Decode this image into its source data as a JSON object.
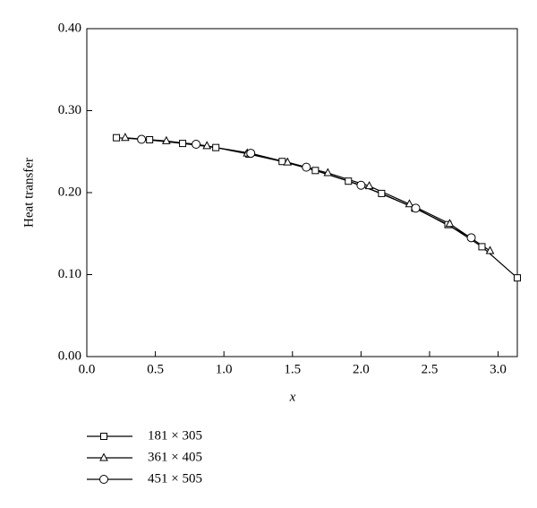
{
  "chart_data": {
    "type": "line",
    "x_label": "x",
    "y_label": "Heat transfer",
    "xlim": [
      0,
      3.14
    ],
    "ylim": [
      0,
      0.4
    ],
    "xticks": [
      {
        "value": 0,
        "label": "0.0"
      },
      0.5,
      {
        "value": 1,
        "label": "1.0"
      },
      1.5,
      {
        "value": 2,
        "label": "2.0"
      },
      2.5,
      {
        "value": 3,
        "label": "3.0"
      }
    ],
    "yticks": [
      {
        "value": 0,
        "label": "0.00"
      },
      {
        "value": 0.1,
        "label": "0.10"
      },
      {
        "value": 0.2,
        "label": "0.20"
      },
      {
        "value": 0.3,
        "label": "0.30"
      },
      {
        "value": 0.4,
        "label": "0.40"
      }
    ],
    "series": [
      {
        "name": "181 × 305",
        "color": "#000000",
        "marker": "square",
        "x": [
          0.216,
          0.458,
          0.699,
          0.941,
          1.183,
          1.425,
          1.667,
          1.908,
          2.15,
          2.392,
          2.634,
          2.882,
          3.14
        ],
        "values": [
          0.267,
          0.2645,
          0.26,
          0.255,
          0.247,
          0.238,
          0.227,
          0.214,
          0.199,
          0.181,
          0.161,
          0.134,
          0.096
        ]
      },
      {
        "name": "361 × 405",
        "color": "#000000",
        "marker": "triangle",
        "x": [
          0.28,
          0.58,
          0.876,
          1.17,
          1.464,
          1.758,
          2.06,
          2.353,
          2.647,
          2.941
        ],
        "values": [
          0.267,
          0.263,
          0.257,
          0.248,
          0.237,
          0.224,
          0.208,
          0.186,
          0.162,
          0.129
        ]
      },
      {
        "name": "451 × 505",
        "color": "#000000",
        "marker": "circle",
        "x": [
          0.399,
          0.797,
          1.196,
          1.601,
          2.0,
          2.399,
          2.804
        ],
        "values": [
          0.265,
          0.259,
          0.248,
          0.231,
          0.209,
          0.181,
          0.145
        ]
      }
    ]
  }
}
